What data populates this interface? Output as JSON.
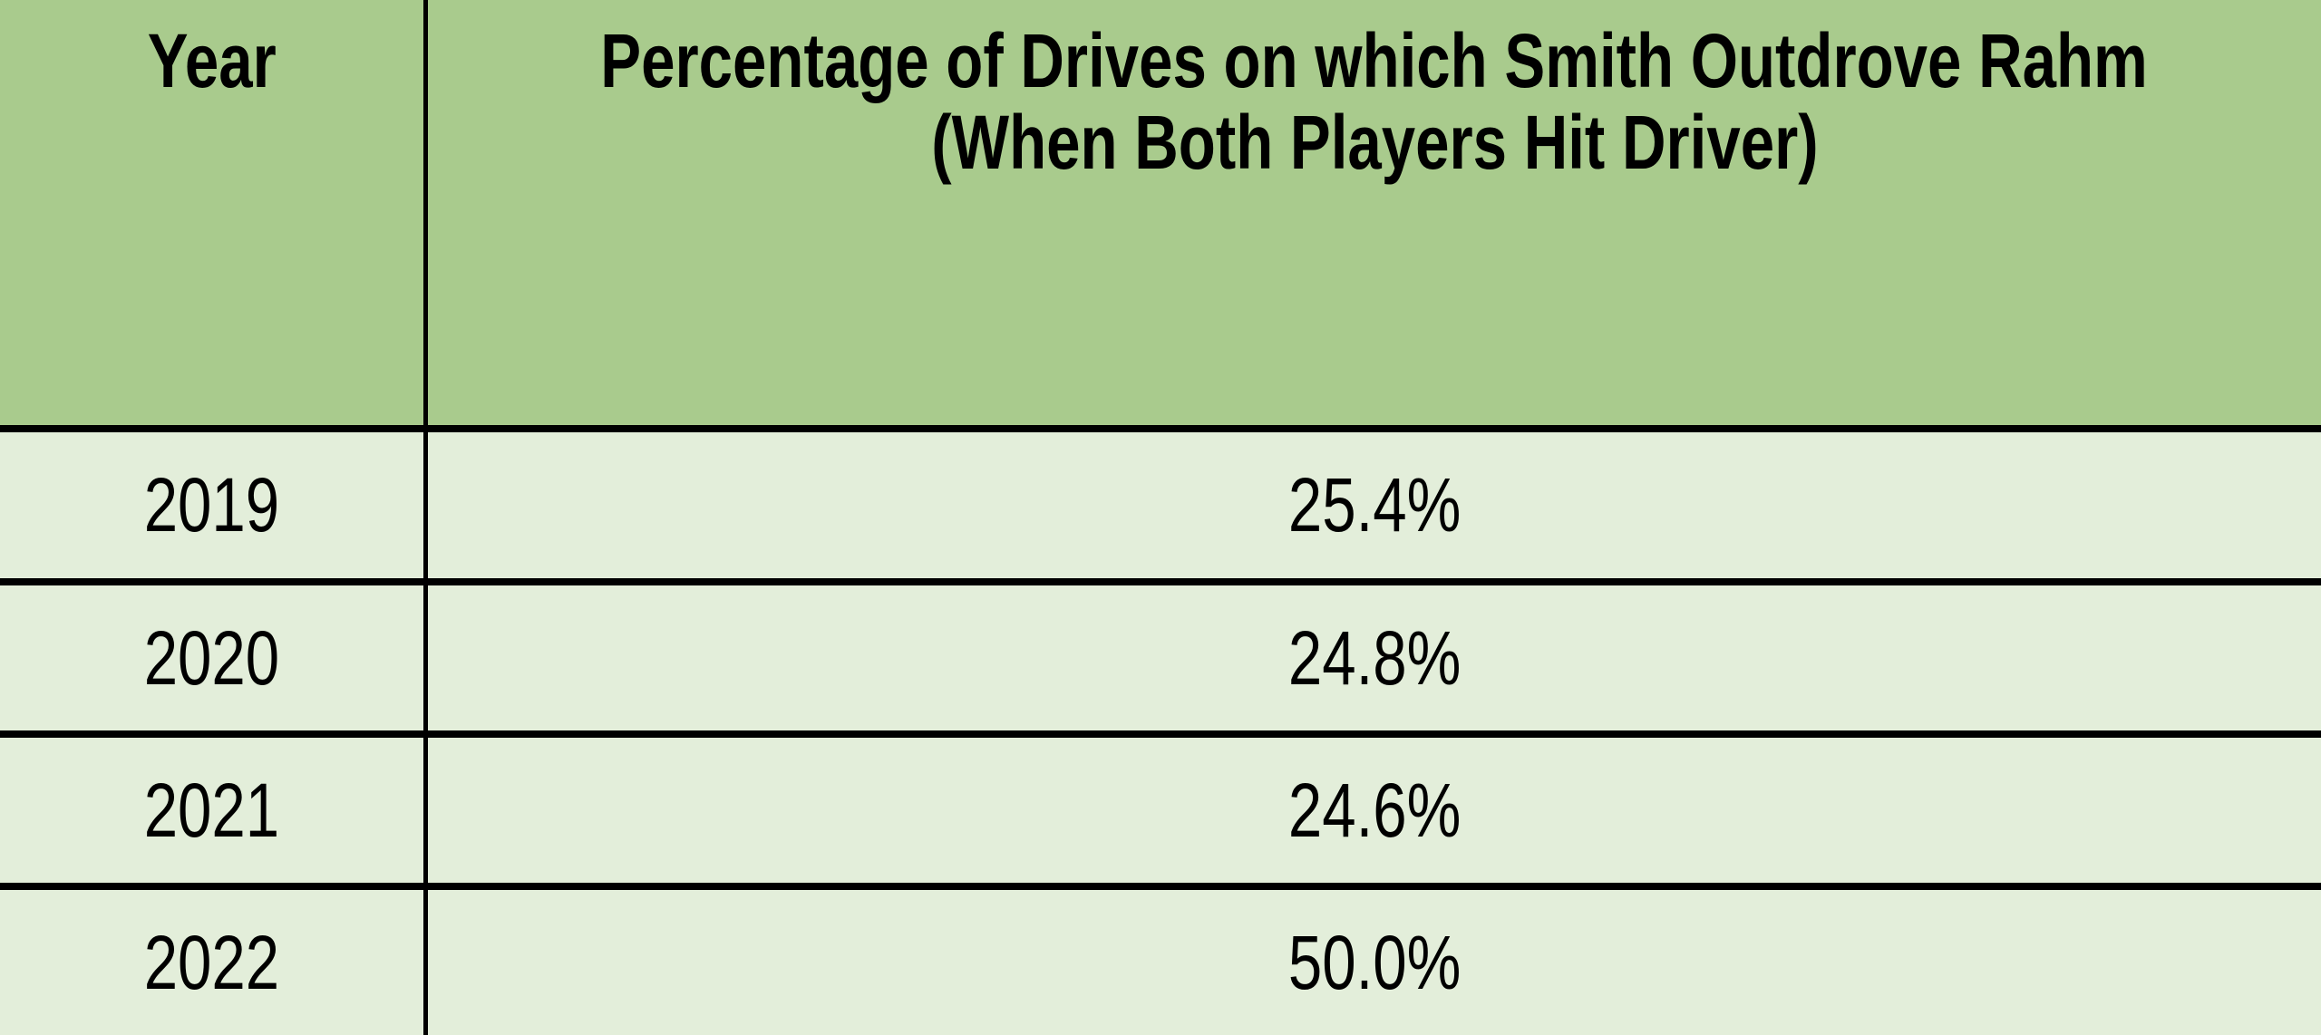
{
  "table": {
    "header": {
      "year_label": "Year",
      "pct_label_line1": "Percentage of Drives on which Smith Outdrove Rahm",
      "pct_label_line2": "(When Both Players Hit Driver)"
    },
    "rows": [
      {
        "year": "2019",
        "pct": "25.4%"
      },
      {
        "year": "2020",
        "pct": "24.8%"
      },
      {
        "year": "2021",
        "pct": "24.6%"
      },
      {
        "year": "2022",
        "pct": "50.0%"
      }
    ]
  },
  "colors": {
    "header_bg": "#a9cb8d",
    "row_bg": "#e3eeda",
    "border": "#000000",
    "text": "#000000"
  },
  "chart_data": {
    "type": "table",
    "title": "Percentage of Drives on which Smith Outdrove Rahm (When Both Players Hit Driver)",
    "columns": [
      "Year",
      "Percentage of Drives on which Smith Outdrove Rahm (When Both Players Hit Driver)"
    ],
    "categories": [
      "2019",
      "2020",
      "2021",
      "2022"
    ],
    "values": [
      25.4,
      24.8,
      24.6,
      50.0
    ],
    "value_unit": "%",
    "rows": [
      [
        "2019",
        "25.4%"
      ],
      [
        "2020",
        "24.8%"
      ],
      [
        "2021",
        "24.6%"
      ],
      [
        "2022",
        "50.0%"
      ]
    ],
    "layout": {
      "header_position": "top",
      "grid": true,
      "text_align": "center"
    }
  }
}
